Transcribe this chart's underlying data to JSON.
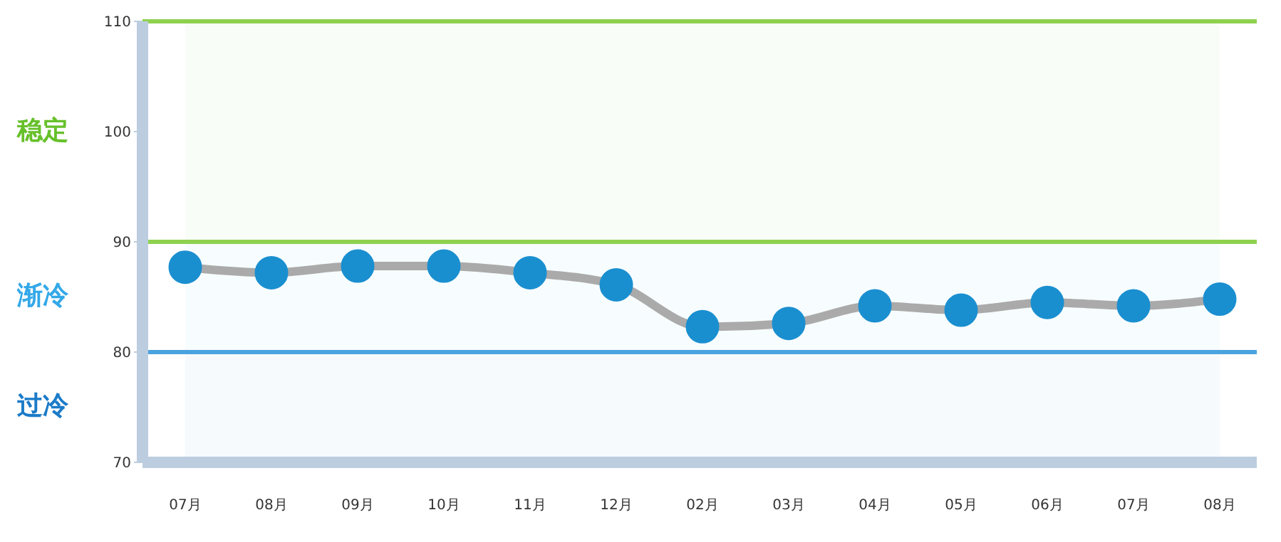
{
  "chart_data": {
    "type": "line",
    "categories": [
      "07月",
      "08月",
      "09月",
      "10月",
      "11月",
      "12月",
      "02月",
      "03月",
      "04月",
      "05月",
      "06月",
      "07月",
      "08月"
    ],
    "series": [
      {
        "color": "#1a8fd0",
        "values": [
          87.7,
          87.2,
          87.8,
          87.8,
          87.2,
          86.1,
          82.3,
          82.6,
          84.2,
          83.8,
          84.5,
          84.2,
          84.8
        ]
      }
    ],
    "ylim": [
      70,
      110
    ],
    "yticks": [
      70,
      80,
      90,
      100,
      110
    ],
    "grid": false,
    "marker": "circle",
    "line_style": "solid",
    "ref_lines": [
      {
        "axis": "y",
        "value": 110,
        "color": "#8fd14f"
      },
      {
        "axis": "y",
        "value": 90,
        "color": "#8fd14f"
      },
      {
        "axis": "y",
        "value": 80,
        "color": "#4aa3df"
      }
    ],
    "bands": [
      {
        "axis": "y",
        "from": 90,
        "to": 110,
        "label": "稳定",
        "color": "#66c02a"
      },
      {
        "axis": "y",
        "from": 80,
        "to": 90,
        "label": "渐冷",
        "color": "#33a8e8"
      },
      {
        "axis": "y",
        "from": 70,
        "to": 80,
        "label": "过冷",
        "color": "#1b7bc8"
      }
    ]
  }
}
